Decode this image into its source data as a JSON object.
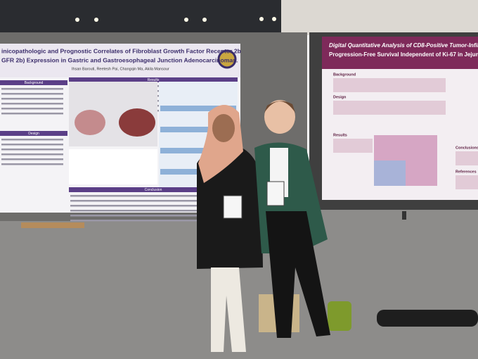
{
  "poster_left": {
    "title_lines": [
      "inicopathologic and Prognostic Correlates of Fibroblast Growth Factor Receptor 2b",
      "GFR 2b) Expression in Gastric and Gastroesophageal Junction Adenocarcinomas."
    ],
    "authors": "Ihsan Barouti, Reetesh Pai, Changqin Ma, Akila Mansour",
    "sections": [
      "Background",
      "Design",
      "Results",
      "Conclusion"
    ]
  },
  "poster_right": {
    "title_lines": [
      "Digital Quantitative Analysis of CD8-Positive Tumor-Infiltrating",
      "Progression-Free Survival Independent of Ki-67 in Jejuno-Ileal N"
    ],
    "sections": [
      "Background",
      "Design",
      "Results",
      "Conclusions",
      "References"
    ]
  }
}
